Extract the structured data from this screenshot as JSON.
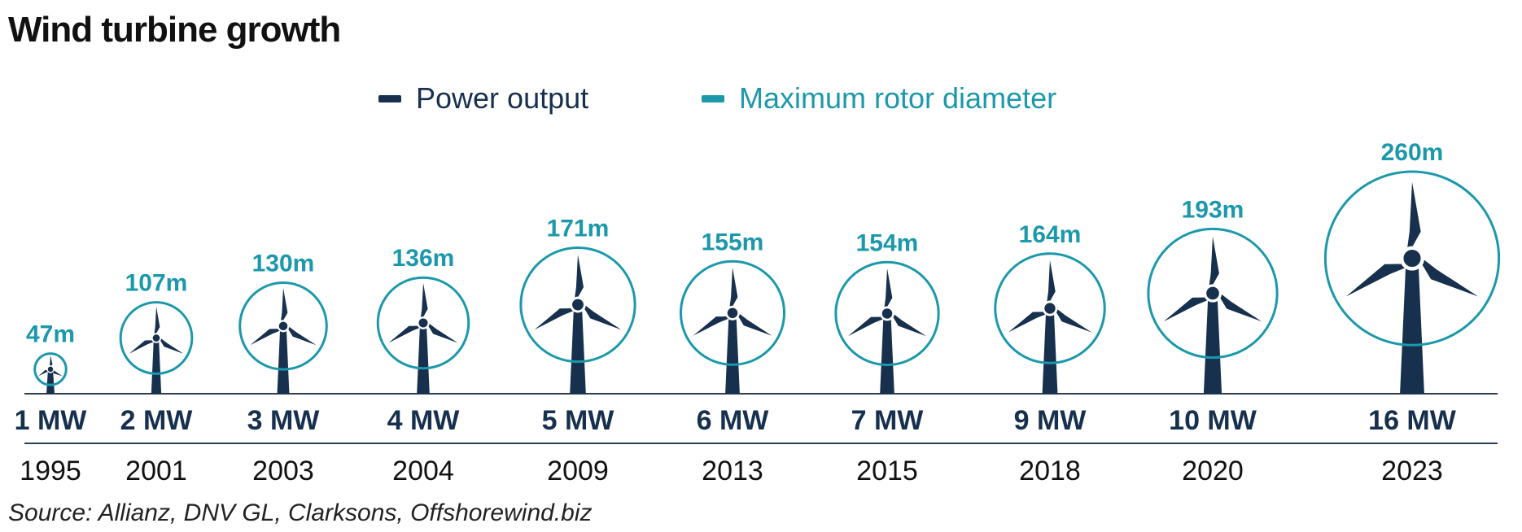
{
  "title": "Wind turbine growth",
  "source": "Source: Allianz, DNV GL, Clarksons, Offshorewind.biz",
  "colors": {
    "power": "#16304d",
    "rotor": "#1c98ab",
    "text_dark": "#16304d",
    "axis": "#2a3f55"
  },
  "chart_data": {
    "type": "pictogram",
    "title": "Wind turbine growth",
    "legend": {
      "placement": "top-center",
      "entries": [
        {
          "name": "Power output",
          "color": "#16304d"
        },
        {
          "name": "Maximum rotor diameter",
          "color": "#1c98ab"
        }
      ]
    },
    "categories": [
      "1995",
      "2001",
      "2003",
      "2004",
      "2009",
      "2013",
      "2015",
      "2018",
      "2020",
      "2023"
    ],
    "series": [
      {
        "name": "Maximum rotor diameter",
        "unit": "m",
        "values": [
          47,
          107,
          130,
          136,
          171,
          155,
          154,
          164,
          193,
          260
        ],
        "labels": [
          "47m",
          "107m",
          "130m",
          "136m",
          "171m",
          "155m",
          "154m",
          "164m",
          "193m",
          "260m"
        ]
      },
      {
        "name": "Power output",
        "unit": "MW",
        "values": [
          1,
          2,
          3,
          4,
          5,
          6,
          7,
          9,
          10,
          16
        ],
        "labels": [
          "1 MW",
          "2 MW",
          "3 MW",
          "4 MW",
          "5 MW",
          "6 MW",
          "7 MW",
          "9 MW",
          "10 MW",
          "16 MW"
        ]
      }
    ]
  }
}
